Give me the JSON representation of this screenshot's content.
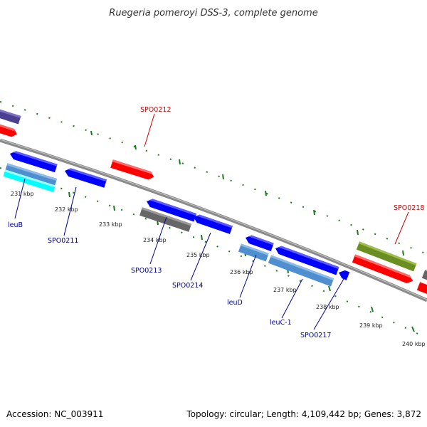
{
  "title": "Ruegeria pomeroyi DSS-3, complete genome",
  "footer": {
    "accession": "Accession: NC_003911",
    "summary": "Topology: circular; Length: 4,109,442 bp; Genes: 3,872"
  },
  "ticks": [
    "231 kbp",
    "232 kbp",
    "233 kbp",
    "234 kbp",
    "235 kbp",
    "236 kbp",
    "237 kbp",
    "238 kbp",
    "239 kbp",
    "240 kbp"
  ],
  "gene_labels": [
    "SPO0212",
    "SPO0218",
    "leuB",
    "SPO0211",
    "SPO0213",
    "SPO0214",
    "leuD",
    "leuC-1",
    "SPO0217"
  ],
  "colors": {
    "forward_cds": "#0000ff",
    "reverse_cds": "#ff0000",
    "steelblue_feature": "#4f8fcf",
    "gray_feature": "#666666",
    "cyan_feature": "#00ffff",
    "olive_feature": "#6b8e23",
    "purple_feature": "#4b3f8f",
    "backbone": "#888888",
    "tick": "#1e7a1e",
    "label_blue": "#00008b",
    "label_red": "#cc0000"
  }
}
